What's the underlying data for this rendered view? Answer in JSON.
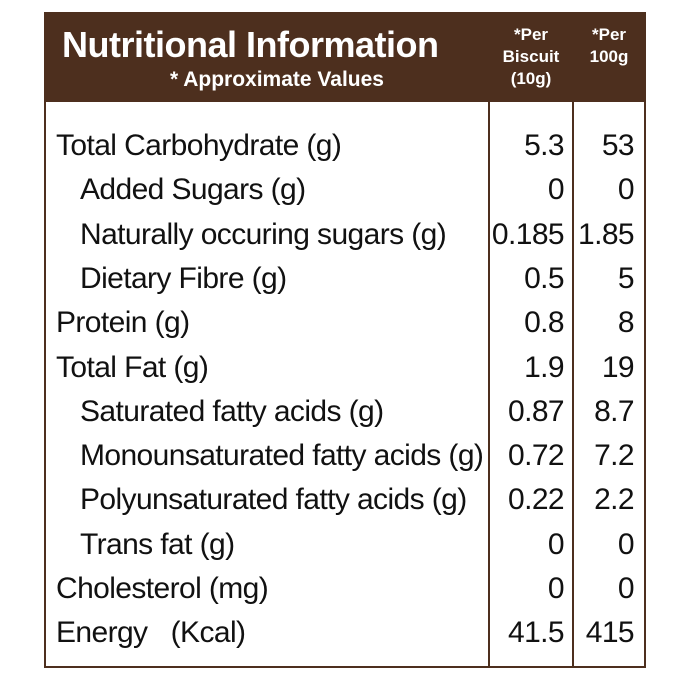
{
  "header": {
    "title": "Nutritional Information",
    "subtitle": "* Approximate Values",
    "col1": "*Per\nBiscuit\n(10g)",
    "col2": "*Per\n100g"
  },
  "rows": [
    {
      "name": "Total Carbohydrate (g)",
      "per_biscuit": "5.3",
      "per_100g": "53",
      "indent": false
    },
    {
      "name": "Added Sugars (g)",
      "per_biscuit": "0",
      "per_100g": "0",
      "indent": true
    },
    {
      "name": "Naturally occuring sugars (g)",
      "per_biscuit": "0.185",
      "per_100g": "1.85",
      "indent": true
    },
    {
      "name": "Dietary Fibre (g)",
      "per_biscuit": "0.5",
      "per_100g": "5",
      "indent": true
    },
    {
      "name": "Protein (g)",
      "per_biscuit": "0.8",
      "per_100g": "8",
      "indent": false
    },
    {
      "name": "Total Fat (g)",
      "per_biscuit": "1.9",
      "per_100g": "19",
      "indent": false
    },
    {
      "name": "Saturated fatty acids (g)",
      "per_biscuit": "0.87",
      "per_100g": "8.7",
      "indent": true
    },
    {
      "name": "Monounsaturated fatty acids (g)",
      "per_biscuit": "0.72",
      "per_100g": "7.2",
      "indent": true
    },
    {
      "name": "Polyunsaturated fatty acids (g)",
      "per_biscuit": "0.22",
      "per_100g": "2.2",
      "indent": true
    },
    {
      "name": "Trans fat (g)",
      "per_biscuit": "0",
      "per_100g": "0",
      "indent": true
    },
    {
      "name": "Cholesterol (mg)",
      "per_biscuit": "0",
      "per_100g": "0",
      "indent": false
    },
    {
      "name": "Energy   (Kcal)",
      "per_biscuit": "41.5",
      "per_100g": "415",
      "indent": false
    }
  ],
  "colors": {
    "header_bg": "#4d2f1e",
    "header_text": "#ffffff",
    "body_text": "#111111"
  }
}
